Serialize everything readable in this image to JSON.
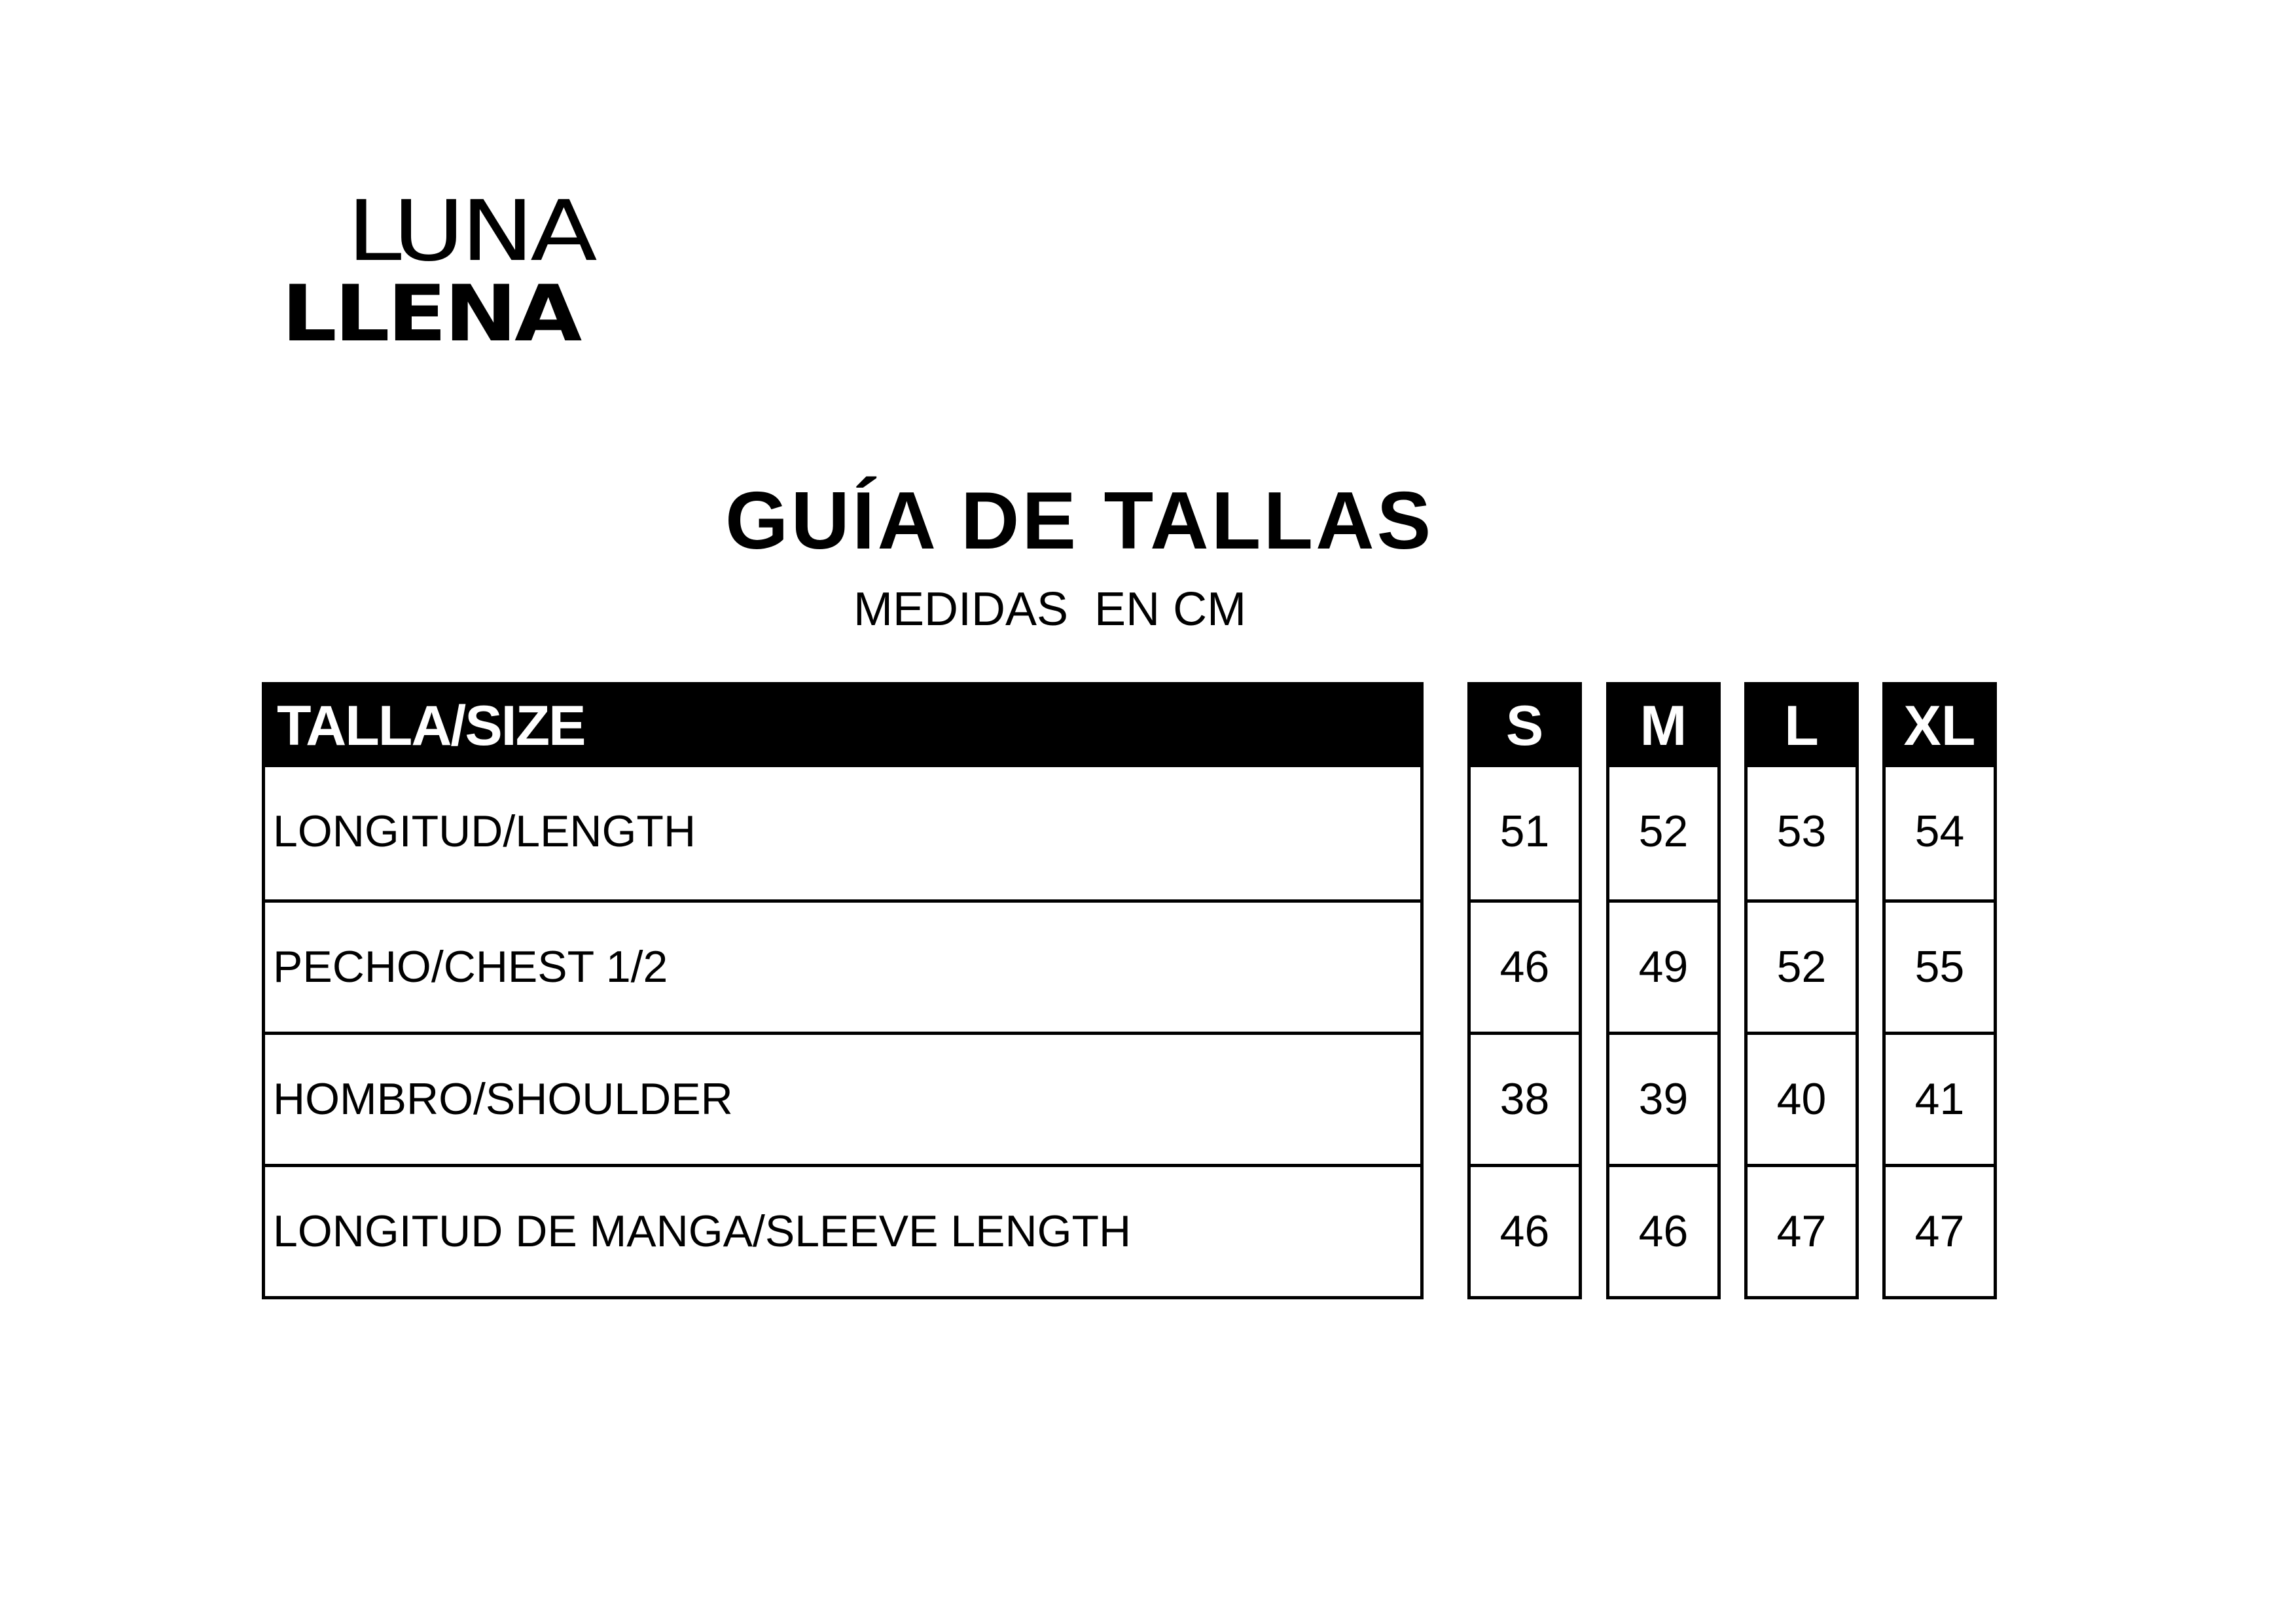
{
  "brand": {
    "line1": "LUNA",
    "line2": "LLENA"
  },
  "title": "GUÍA DE TALLAS",
  "subtitle": "MEDIDAS  EN CM",
  "table": {
    "header_label": "TALLA/SIZE",
    "rows": [
      "LONGITUD/LENGTH",
      "PECHO/CHEST 1/2",
      "HOMBRO/SHOULDER",
      "LONGITUD DE MANGA/SLEEVE LENGTH"
    ],
    "sizes": [
      {
        "label": "S",
        "values": [
          "51",
          "46",
          "38",
          "46"
        ]
      },
      {
        "label": "M",
        "values": [
          "52",
          "49",
          "39",
          "46"
        ]
      },
      {
        "label": "L",
        "values": [
          "53",
          "52",
          "40",
          "47"
        ]
      },
      {
        "label": "XL",
        "values": [
          "54",
          "55",
          "41",
          "47"
        ]
      }
    ]
  }
}
